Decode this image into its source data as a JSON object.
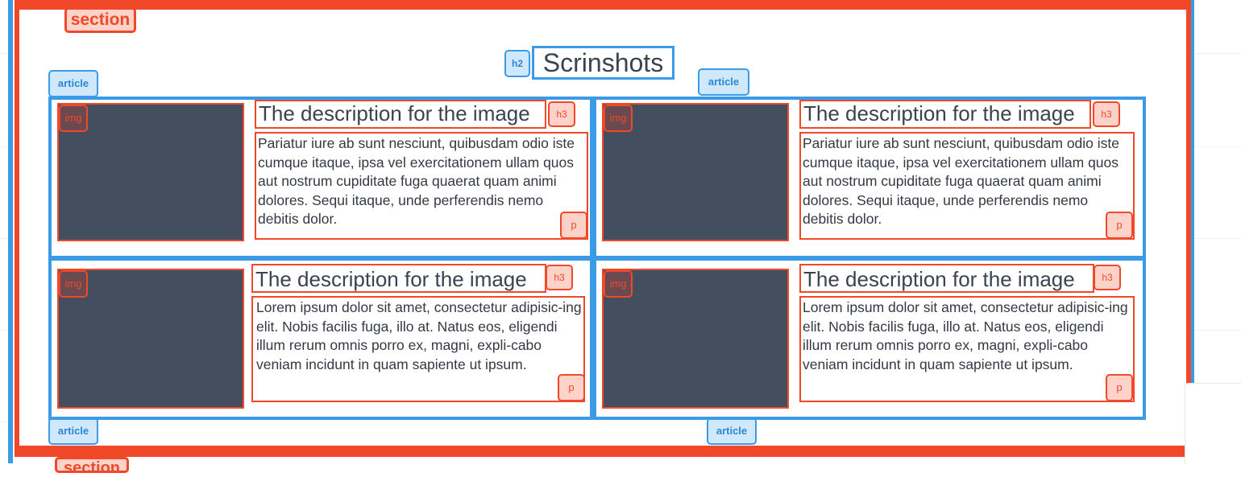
{
  "section": {
    "label": "section",
    "bottom_label": "section"
  },
  "heading": {
    "tag": "h2",
    "text": "Scrinshots"
  },
  "article_tag": "article",
  "articles": [
    {
      "img_tag": "img",
      "h3_tag": "h3",
      "title": "The description for the image",
      "p_tag": "p",
      "body": "Pariatur iure ab sunt nesciunt, quibusdam odio iste cumque itaque, ipsa vel exercitationem ullam quos aut nostrum cupiditate fuga quaerat quam animi dolores. Sequi itaque, unde perferendis nemo debitis dolor."
    },
    {
      "img_tag": "img",
      "h3_tag": "h3",
      "title": "The description for the image",
      "p_tag": "p",
      "body": "Pariatur iure ab sunt nesciunt, quibusdam odio iste cumque itaque, ipsa vel exercitationem ullam quos aut nostrum cupiditate fuga quaerat quam animi dolores. Sequi itaque, unde perferendis nemo debitis dolor."
    },
    {
      "img_tag": "img",
      "h3_tag": "h3",
      "title": "The description for the image",
      "p_tag": "p",
      "body": "Lorem ipsum dolor sit amet, consectetur adipisic-ing elit. Nobis facilis fuga, illo at. Natus eos, eligendi illum rerum omnis porro ex, magni, expli-cabo veniam incidunt in quam sapiente ut ipsum."
    },
    {
      "img_tag": "img",
      "h3_tag": "h3",
      "title": "The description for the image",
      "p_tag": "p",
      "body": "Lorem ipsum dolor sit amet, consectetur adipisic-ing elit. Nobis facilis fuga, illo at. Natus eos, eligendi illum rerum omnis porro ex, magni, expli-cabo veniam incidunt in quam sapiente ut ipsum."
    }
  ],
  "colors": {
    "section_border": "#f1482a",
    "article_border": "#3b9be6",
    "image_fill": "#434f5e"
  }
}
